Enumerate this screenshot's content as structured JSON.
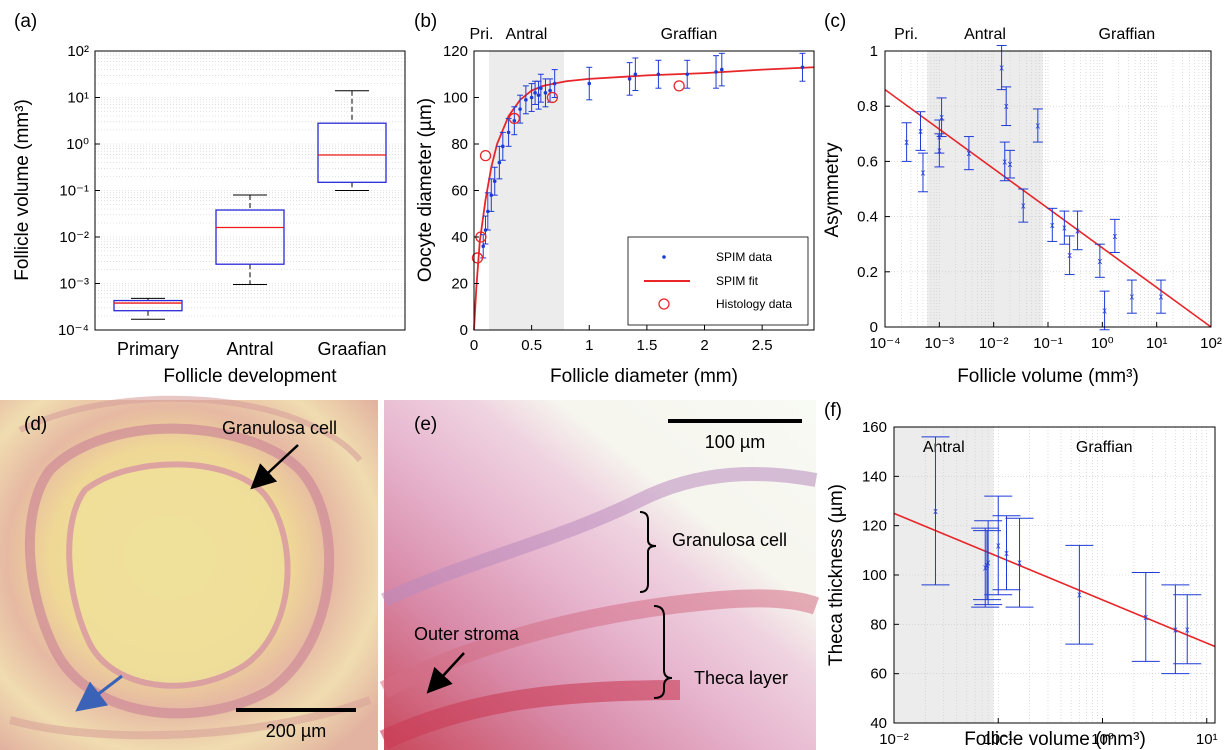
{
  "colors": {
    "data_blue": "#1f3bd6",
    "fit_red": "#e8262a",
    "shade": "#ececec",
    "box_blue": "#2a2ad8",
    "median_red": "#f01a1a"
  },
  "panel_labels": {
    "a": "(a)",
    "b": "(b)",
    "c": "(c)",
    "d": "(d)",
    "e": "(e)",
    "f": "(f)"
  },
  "chart_data": [
    {
      "id": "a",
      "type": "box",
      "xlabel": "Follicle development",
      "ylabel": "Follicle volume (mm³)",
      "yscale": "log",
      "ylim": [
        0.0001,
        100
      ],
      "ytick_labels": [
        "10⁻⁴",
        "10⁻³",
        "10⁻²",
        "10⁻¹",
        "10⁰",
        "10¹",
        "10²"
      ],
      "grid": true,
      "categories": [
        "Primary",
        "Antral",
        "Graafian"
      ],
      "boxes": [
        {
          "whisker_low": 0.00017,
          "q1": 0.00026,
          "median": 0.00038,
          "q3": 0.00043,
          "whisker_high": 0.00048
        },
        {
          "whisker_low": 0.00095,
          "q1": 0.0026,
          "median": 0.016,
          "q3": 0.038,
          "whisker_high": 0.08
        },
        {
          "whisker_low": 0.1,
          "q1": 0.15,
          "median": 0.58,
          "q3": 2.8,
          "whisker_high": 14
        }
      ]
    },
    {
      "id": "b",
      "type": "scatter",
      "xlabel": "Follicle diameter (mm)",
      "ylabel": "Oocyte diameter (µm)",
      "xlim": [
        0,
        2.95
      ],
      "ylim": [
        0,
        120
      ],
      "xticks": [
        0,
        0.5,
        1,
        1.5,
        2,
        2.5
      ],
      "xtick_labels": [
        "0",
        "0.5",
        "1",
        "1.5",
        "2",
        "2.5"
      ],
      "yticks": [
        0,
        20,
        40,
        60,
        80,
        100,
        120
      ],
      "regions": [
        {
          "label": "Pri.",
          "from": 0,
          "to": 0.13
        },
        {
          "label": "Antral",
          "from": 0.13,
          "to": 0.78,
          "shaded": true
        },
        {
          "label": "Graffian",
          "from": 0.78,
          "to": 2.95
        }
      ],
      "legend": {
        "position": "bottom-right",
        "entries": [
          "SPIM data",
          "SPIM fit",
          "Histology data"
        ]
      },
      "spim_data": {
        "x": [
          0.08,
          0.1,
          0.12,
          0.15,
          0.18,
          0.22,
          0.25,
          0.3,
          0.35,
          0.4,
          0.45,
          0.5,
          0.53,
          0.56,
          0.58,
          0.62,
          0.66,
          0.7,
          1.0,
          1.35,
          1.4,
          1.6,
          1.85,
          2.1,
          2.15,
          2.85
        ],
        "y": [
          36,
          43,
          51,
          58,
          64,
          72,
          79,
          85,
          90,
          95,
          99,
          100,
          102,
          101,
          104,
          102,
          103,
          106,
          106,
          108,
          110,
          110,
          110,
          111,
          112,
          113
        ],
        "err": [
          5,
          6,
          8,
          7,
          6,
          7,
          6,
          6,
          6,
          6,
          6,
          6,
          5,
          6,
          6,
          6,
          5,
          6,
          7,
          7,
          7,
          6,
          6,
          7,
          7,
          6
        ],
        "name": "SPIM data"
      },
      "spim_fit": {
        "name": "SPIM fit",
        "x": [
          0,
          0.02,
          0.05,
          0.1,
          0.15,
          0.2,
          0.3,
          0.4,
          0.5,
          0.6,
          0.7,
          0.8,
          1.0,
          1.5,
          2.0,
          2.5,
          2.95
        ],
        "y": [
          0,
          18,
          38,
          56,
          70,
          80,
          92,
          99,
          103,
          105,
          106,
          107,
          108,
          109.5,
          110.5,
          112,
          113
        ]
      },
      "histology": {
        "name": "Histology data",
        "x": [
          0.03,
          0.06,
          0.1,
          0.35,
          0.68,
          1.78
        ],
        "y": [
          31,
          40,
          75,
          91,
          100,
          105
        ]
      }
    },
    {
      "id": "c",
      "type": "scatter",
      "xlabel": "Follicle volume (mm³)",
      "ylabel": "Asymmetry",
      "xscale": "log",
      "xlim": [
        0.0001,
        100
      ],
      "ylim": [
        0,
        1
      ],
      "xtick_labels": [
        "10⁻⁴",
        "10⁻³",
        "10⁻²",
        "10⁻¹",
        "10⁰",
        "10¹",
        "10²"
      ],
      "yticks": [
        0,
        0.2,
        0.4,
        0.6,
        0.8,
        1
      ],
      "ytick_labels": [
        "0",
        "0.2",
        "0.4",
        "0.6",
        "0.8",
        "1"
      ],
      "regions": [
        {
          "label": "Pri.",
          "from": 0.0001,
          "to": 0.0006
        },
        {
          "label": "Antral",
          "from": 0.0006,
          "to": 0.08,
          "shaded": true
        },
        {
          "label": "Graffian",
          "from": 0.08,
          "to": 100
        }
      ],
      "points": {
        "x": [
          0.00025,
          0.00045,
          0.0005,
          0.001,
          0.001,
          0.0011,
          0.0035,
          0.014,
          0.016,
          0.017,
          0.02,
          0.035,
          0.065,
          0.12,
          0.2,
          0.25,
          0.35,
          0.9,
          1.1,
          1.7,
          3.5,
          12
        ],
        "y": [
          0.67,
          0.71,
          0.56,
          0.69,
          0.64,
          0.76,
          0.63,
          0.94,
          0.6,
          0.8,
          0.59,
          0.44,
          0.73,
          0.37,
          0.36,
          0.26,
          0.35,
          0.24,
          0.06,
          0.33,
          0.11,
          0.11
        ],
        "err": [
          0.07,
          0.07,
          0.07,
          0.06,
          0.06,
          0.07,
          0.06,
          0.08,
          0.07,
          0.07,
          0.05,
          0.06,
          0.06,
          0.06,
          0.06,
          0.07,
          0.07,
          0.06,
          0.07,
          0.06,
          0.06,
          0.06
        ]
      },
      "fit": {
        "x": [
          0.0001,
          100
        ],
        "y": [
          0.86,
          0.0
        ]
      }
    },
    {
      "id": "f",
      "type": "scatter",
      "xlabel": "Follicle volume (mm³)",
      "ylabel": "Theca thickness (µm)",
      "xscale": "log",
      "xlim": [
        0.01,
        12
      ],
      "ylim": [
        40,
        160
      ],
      "xtick_labels": [
        "10⁻²",
        "10⁻¹",
        "10⁰",
        "10¹"
      ],
      "yticks": [
        40,
        60,
        80,
        100,
        120,
        140,
        160
      ],
      "regions": [
        {
          "label": "Antral",
          "from": 0.01,
          "to": 0.09,
          "shaded": true
        },
        {
          "label": "Graffian",
          "from": 0.09,
          "to": 12
        }
      ],
      "points": {
        "x": [
          0.025,
          0.075,
          0.078,
          0.08,
          0.1,
          0.12,
          0.16,
          0.6,
          2.6,
          5.0,
          6.5
        ],
        "y": [
          126,
          103,
          104,
          105,
          112,
          109,
          105,
          92,
          83,
          78,
          78
        ],
        "err": [
          30,
          16,
          14,
          17,
          20,
          15,
          18,
          20,
          18,
          18,
          14
        ]
      },
      "fit": {
        "x": [
          0.01,
          12
        ],
        "y": [
          125,
          71
        ]
      }
    }
  ],
  "photos": {
    "d": {
      "annotations": [
        "Granulosa cell"
      ],
      "scale_bar": "200 µm"
    },
    "e": {
      "annotations": [
        "Granulosa cell",
        "Outer stroma",
        "Theca layer"
      ],
      "scale_bar": "100 µm"
    }
  }
}
